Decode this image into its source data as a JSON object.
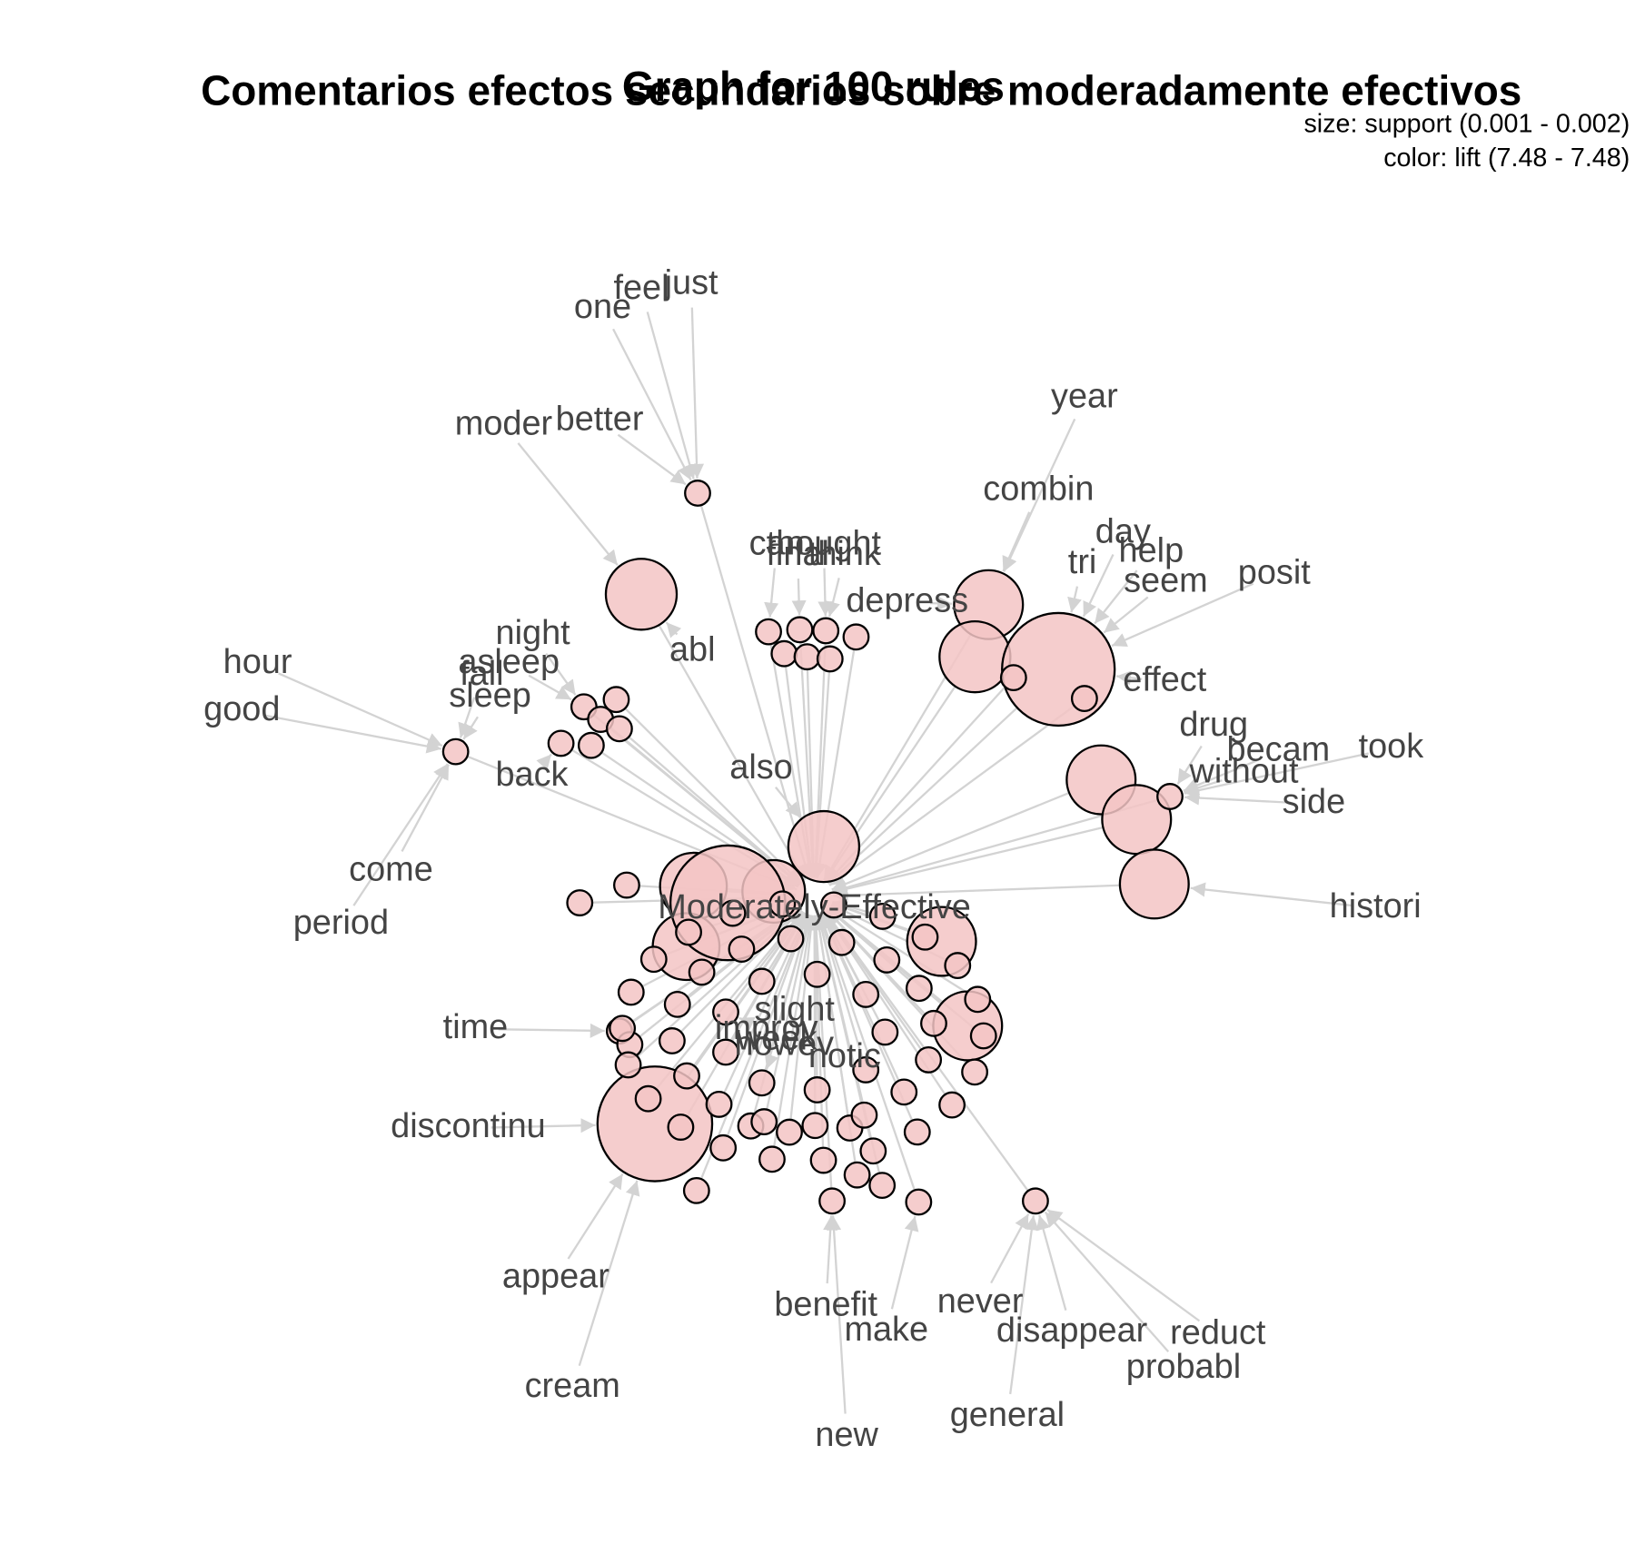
{
  "title": "Comentarios efectos secundarios sobre moderadamente efectivos",
  "subtitle": "Graph for 100 rules",
  "legend": {
    "size": "size: support (0.001 - 0.002)",
    "color": "color: lift (7.48 - 7.48)"
  },
  "nodes": [
    {
      "label": "one"
    },
    {
      "label": "feel"
    },
    {
      "label": "just"
    },
    {
      "label": "moder"
    },
    {
      "label": "better"
    },
    {
      "label": "year"
    },
    {
      "label": "combin"
    },
    {
      "label": "day"
    },
    {
      "label": "tri"
    },
    {
      "label": "help"
    },
    {
      "label": "seem"
    },
    {
      "label": "posit"
    },
    {
      "label": "can"
    },
    {
      "label": "thought"
    },
    {
      "label": "final"
    },
    {
      "label": "think"
    },
    {
      "label": "depress"
    },
    {
      "label": "night"
    },
    {
      "label": "asleep"
    },
    {
      "label": "fall"
    },
    {
      "label": "sleep"
    },
    {
      "label": "abl"
    },
    {
      "label": "hour"
    },
    {
      "label": "good"
    },
    {
      "label": "effect"
    },
    {
      "label": "drug"
    },
    {
      "label": "becam"
    },
    {
      "label": "took"
    },
    {
      "label": "without"
    },
    {
      "label": "side"
    },
    {
      "label": "also"
    },
    {
      "label": "back"
    },
    {
      "label": "come"
    },
    {
      "label": "period"
    },
    {
      "label": "Moderately-Effective"
    },
    {
      "label": "histori"
    },
    {
      "label": "time"
    },
    {
      "label": "slight"
    },
    {
      "label": "improv"
    },
    {
      "label": "week"
    },
    {
      "label": "howev"
    },
    {
      "label": "notic"
    },
    {
      "label": "discontinu"
    },
    {
      "label": "appear"
    },
    {
      "label": "benefit"
    },
    {
      "label": "never"
    },
    {
      "label": "make"
    },
    {
      "label": "disappear"
    },
    {
      "label": "reduct"
    },
    {
      "label": "probabl"
    },
    {
      "label": "cream"
    },
    {
      "label": "general"
    },
    {
      "label": "new"
    }
  ]
}
